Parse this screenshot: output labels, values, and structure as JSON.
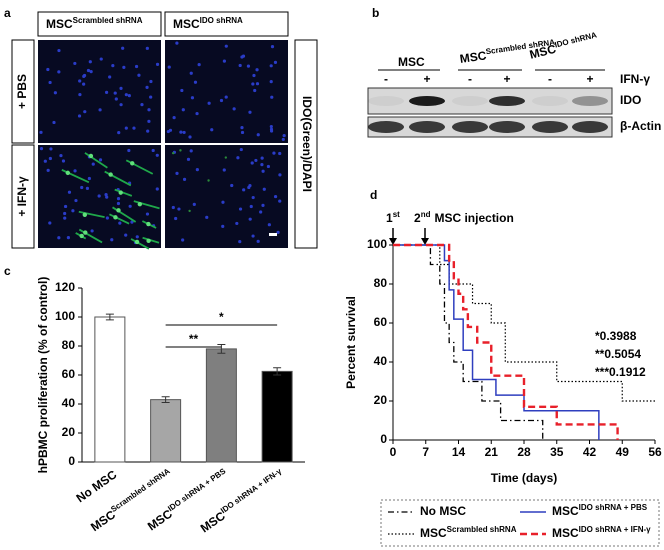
{
  "panel_labels": [
    "a",
    "b",
    "c",
    "d"
  ],
  "panel_a": {
    "columns": [
      {
        "base": "MSC",
        "sup": "Scrambled shRNA"
      },
      {
        "base": "MSC",
        "sup": "IDO shRNA"
      }
    ],
    "rows": [
      "+ PBS",
      "+ IFN-γ"
    ],
    "stain_label": "IDO(Green)/DAPI"
  },
  "panel_b": {
    "groups": [
      {
        "base": "MSC"
      },
      {
        "base": "MSC",
        "sup": "Scrambled shRNA"
      },
      {
        "base": "MSC",
        "sup": "IDO shRNA"
      }
    ],
    "treatment_signs": [
      "-",
      "+",
      "-",
      "+",
      "-",
      "+"
    ],
    "treatment_label": "IFN-γ",
    "bands": [
      "IDO",
      "β-Actin"
    ]
  },
  "chart_data": [
    {
      "type": "bar",
      "ylabel": "hPBMC proliferation (% of control)",
      "categories": [
        "No MSC",
        "MSC",
        "MSC",
        "MSC"
      ],
      "category_superscripts": [
        null,
        "Scrambled shRNA",
        "IDO shRNA + PBS",
        "IDO shRNA + IFN-γ"
      ],
      "values": [
        100,
        43,
        78,
        62.5
      ],
      "errors": [
        2,
        2,
        3,
        2.5
      ],
      "colors": [
        "#ffffff",
        "#a6a6a6",
        "#7f7f7f",
        "#000000"
      ],
      "ylim": [
        0,
        120
      ],
      "yticks": [
        0,
        20,
        40,
        60,
        80,
        100,
        120
      ],
      "significance": [
        "**",
        "*"
      ]
    },
    {
      "type": "step",
      "xlabel": "Time (days)",
      "ylabel": "Percent survival",
      "xlim": [
        0,
        56
      ],
      "xticks": [
        0,
        7,
        14,
        21,
        28,
        35,
        42,
        49,
        56
      ],
      "ylim": [
        0,
        100
      ],
      "yticks": [
        0,
        20,
        40,
        60,
        80,
        100
      ],
      "annotations": [
        {
          "base": "1",
          "sup": "st"
        },
        {
          "base": "2",
          "sup": "nd",
          "rest": "MSC injection"
        }
      ],
      "p_values": [
        "*0.3988",
        "**0.5054",
        "***0.1912"
      ],
      "series": [
        {
          "name": "No MSC",
          "color": "#000000",
          "dash": "dashdot",
          "x": [
            0,
            8,
            10,
            11,
            12,
            13,
            15,
            19,
            23,
            32
          ],
          "values": [
            100,
            90,
            80,
            60,
            50,
            40,
            30,
            20,
            10,
            0
          ]
        },
        {
          "name": "MSC",
          "name_sup": "Scrambled shRNA",
          "color": "#000000",
          "dash": "dotted",
          "x": [
            0,
            10,
            12,
            17,
            21,
            24,
            35,
            49,
            56
          ],
          "values": [
            100,
            90,
            80,
            70,
            60,
            40,
            30,
            20,
            20
          ]
        },
        {
          "name": "MSC",
          "name_sup": "IDO shRNA + PBS",
          "color": "#2f3fbf",
          "dash": "solid",
          "x": [
            0,
            11,
            12,
            13,
            15,
            17,
            22,
            28,
            44
          ],
          "values": [
            100,
            92,
            77,
            62,
            46,
            31,
            23,
            15,
            0
          ]
        },
        {
          "name": "MSC",
          "name_sup": "IDO shRNA + IFN-γ",
          "color": "#e8202a",
          "dash": "dashed",
          "x": [
            0,
            12,
            13,
            14,
            15,
            16,
            18,
            21,
            28,
            35,
            48
          ],
          "values": [
            100,
            92,
            83,
            75,
            67,
            58,
            50,
            33,
            17,
            8,
            0
          ]
        }
      ]
    }
  ]
}
